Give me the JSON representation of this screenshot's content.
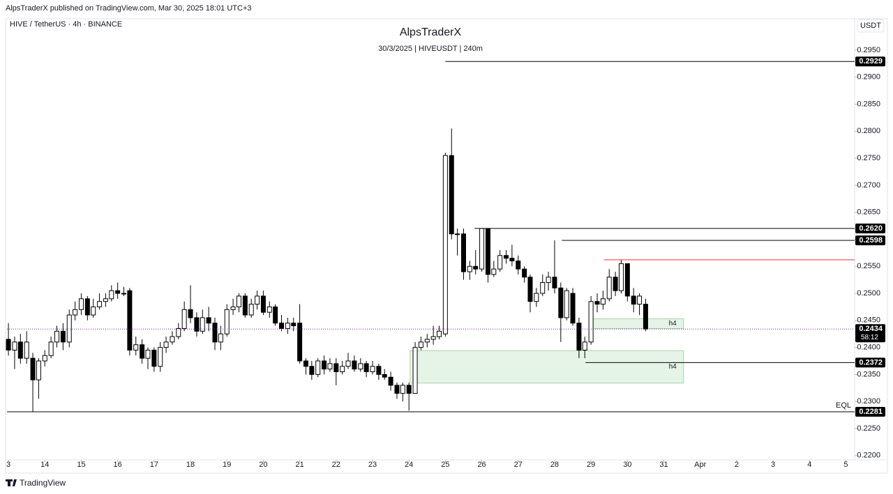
{
  "header": {
    "publisher": "AlpsTraderX published on TradingView.com, Mar 30, 2025 18:01 UTC+3",
    "footer": "TradingView"
  },
  "chart_data": {
    "type": "candlestick",
    "title": "AlpsTraderX",
    "subtitle": "30/3/2025 | HIVEUSDT | 240m",
    "symbol": "HIVE / TetherUS · 4h · BINANCE",
    "currency": "USDT",
    "up_color": "#ffffff",
    "down_color": "#000000",
    "edge_color": "#000000",
    "x": [
      13,
      13.17,
      13.33,
      13.5,
      13.67,
      13.83,
      14,
      14.17,
      14.33,
      14.5,
      14.67,
      14.83,
      15,
      15.17,
      15.33,
      15.5,
      15.67,
      15.83,
      16,
      16.17,
      16.33,
      16.5,
      16.67,
      16.83,
      17,
      17.17,
      17.33,
      17.5,
      17.67,
      17.83,
      18,
      18.17,
      18.33,
      18.5,
      18.67,
      18.83,
      19,
      19.17,
      19.33,
      19.5,
      19.67,
      19.83,
      20,
      20.17,
      20.33,
      20.5,
      20.67,
      20.83,
      21,
      21.17,
      21.33,
      21.5,
      21.67,
      21.83,
      22,
      22.17,
      22.33,
      22.5,
      22.67,
      22.83,
      23,
      23.17,
      23.33,
      23.5,
      23.67,
      23.83,
      24,
      24.17,
      24.33,
      24.5,
      24.67,
      24.83,
      25,
      25.17,
      25.33,
      25.5,
      25.67,
      25.83,
      26,
      26.17,
      26.33,
      26.5,
      26.67,
      26.83,
      27,
      27.17,
      27.33,
      27.5,
      27.67,
      27.83,
      28,
      28.17,
      28.33,
      28.5,
      28.67,
      28.83,
      29,
      29.17,
      29.33,
      29.5,
      29.67,
      29.83,
      30,
      30.17,
      30.33,
      30.5
    ],
    "open": [
      0.2415,
      0.2395,
      0.241,
      0.238,
      0.238,
      0.234,
      0.2375,
      0.2385,
      0.241,
      0.243,
      0.241,
      0.246,
      0.247,
      0.249,
      0.246,
      0.2475,
      0.2485,
      0.249,
      0.2505,
      0.25,
      0.2505,
      0.2395,
      0.2405,
      0.238,
      0.2395,
      0.2365,
      0.24,
      0.241,
      0.242,
      0.2435,
      0.247,
      0.2455,
      0.243,
      0.2455,
      0.2445,
      0.241,
      0.2425,
      0.247,
      0.2475,
      0.2495,
      0.246,
      0.248,
      0.2495,
      0.2465,
      0.2475,
      0.2445,
      0.2435,
      0.2445,
      0.2445,
      0.2375,
      0.2365,
      0.235,
      0.2375,
      0.236,
      0.237,
      0.2355,
      0.2365,
      0.2375,
      0.236,
      0.237,
      0.2355,
      0.2365,
      0.235,
      0.2345,
      0.233,
      0.2315,
      0.233,
      0.2315,
      0.24,
      0.241,
      0.2415,
      0.242,
      0.2425,
      0.2755,
      0.261,
      0.261,
      0.254,
      0.255,
      0.2545,
      0.262,
      0.2535,
      0.2545,
      0.257,
      0.2565,
      0.256,
      0.2545,
      0.253,
      0.2485,
      0.25,
      0.252,
      0.253,
      0.251,
      0.2455,
      0.25,
      0.2445,
      0.2395,
      0.241,
      0.2485,
      0.248,
      0.249,
      0.253,
      0.2505,
      0.2555,
      0.2495,
      0.248,
      0.248
    ],
    "high": [
      0.2445,
      0.242,
      0.2425,
      0.243,
      0.239,
      0.238,
      0.2395,
      0.242,
      0.244,
      0.2445,
      0.247,
      0.2485,
      0.25,
      0.2495,
      0.249,
      0.25,
      0.25,
      0.2515,
      0.252,
      0.2512,
      0.251,
      0.242,
      0.2415,
      0.24,
      0.24,
      0.241,
      0.242,
      0.243,
      0.2445,
      0.2485,
      0.2515,
      0.2465,
      0.247,
      0.2475,
      0.2455,
      0.244,
      0.248,
      0.249,
      0.25,
      0.25,
      0.249,
      0.2505,
      0.2505,
      0.2485,
      0.248,
      0.246,
      0.2455,
      0.2455,
      0.248,
      0.238,
      0.2375,
      0.238,
      0.2385,
      0.238,
      0.238,
      0.2375,
      0.239,
      0.2385,
      0.238,
      0.2375,
      0.2375,
      0.237,
      0.236,
      0.2355,
      0.2335,
      0.2335,
      0.2335,
      0.241,
      0.242,
      0.2425,
      0.244,
      0.244,
      0.276,
      0.2805,
      0.262,
      0.262,
      0.256,
      0.258,
      0.262,
      0.262,
      0.256,
      0.258,
      0.258,
      0.259,
      0.257,
      0.255,
      0.2535,
      0.251,
      0.2535,
      0.254,
      0.2598,
      0.252,
      0.251,
      0.251,
      0.2455,
      0.242,
      0.2495,
      0.25,
      0.2505,
      0.2545,
      0.254,
      0.2562,
      0.2555,
      0.251,
      0.25,
      0.249
    ],
    "low": [
      0.2385,
      0.236,
      0.237,
      0.237,
      0.2281,
      0.2305,
      0.2365,
      0.238,
      0.24,
      0.2395,
      0.24,
      0.245,
      0.246,
      0.245,
      0.2455,
      0.247,
      0.2475,
      0.2485,
      0.249,
      0.2495,
      0.2385,
      0.2385,
      0.237,
      0.236,
      0.2355,
      0.2355,
      0.239,
      0.2405,
      0.2415,
      0.243,
      0.2445,
      0.242,
      0.2425,
      0.243,
      0.2395,
      0.2395,
      0.242,
      0.246,
      0.2465,
      0.2455,
      0.2455,
      0.247,
      0.246,
      0.2455,
      0.244,
      0.243,
      0.2425,
      0.243,
      0.237,
      0.235,
      0.234,
      0.2345,
      0.235,
      0.2355,
      0.233,
      0.235,
      0.236,
      0.2355,
      0.2355,
      0.2345,
      0.235,
      0.234,
      0.234,
      0.232,
      0.2305,
      0.23,
      0.2283,
      0.2315,
      0.2395,
      0.24,
      0.2405,
      0.2415,
      0.242,
      0.26,
      0.257,
      0.2525,
      0.2525,
      0.2535,
      0.254,
      0.252,
      0.253,
      0.254,
      0.2555,
      0.255,
      0.2535,
      0.252,
      0.2465,
      0.2475,
      0.2495,
      0.2505,
      0.25,
      0.241,
      0.245,
      0.244,
      0.238,
      0.238,
      0.2405,
      0.2465,
      0.247,
      0.2485,
      0.2495,
      0.25,
      0.2485,
      0.2465,
      0.246,
      0.243
    ],
    "close": [
      0.2395,
      0.241,
      0.238,
      0.241,
      0.234,
      0.2375,
      0.2385,
      0.241,
      0.243,
      0.241,
      0.246,
      0.247,
      0.249,
      0.246,
      0.2475,
      0.2485,
      0.249,
      0.2505,
      0.25,
      0.25,
      0.2395,
      0.2405,
      0.238,
      0.2395,
      0.2365,
      0.24,
      0.241,
      0.242,
      0.2435,
      0.247,
      0.2455,
      0.243,
      0.2455,
      0.2445,
      0.241,
      0.2425,
      0.247,
      0.2475,
      0.2495,
      0.246,
      0.248,
      0.2495,
      0.2465,
      0.2475,
      0.2445,
      0.2435,
      0.2445,
      0.244,
      0.2375,
      0.2365,
      0.235,
      0.2375,
      0.236,
      0.237,
      0.2355,
      0.2365,
      0.2375,
      0.236,
      0.237,
      0.2355,
      0.2365,
      0.235,
      0.2345,
      0.233,
      0.2315,
      0.233,
      0.2315,
      0.24,
      0.241,
      0.2415,
      0.242,
      0.243,
      0.2755,
      0.261,
      0.261,
      0.254,
      0.255,
      0.2545,
      0.262,
      0.2535,
      0.2545,
      0.257,
      0.2565,
      0.256,
      0.2545,
      0.253,
      0.2485,
      0.25,
      0.252,
      0.253,
      0.251,
      0.2455,
      0.2505,
      0.2445,
      0.2395,
      0.241,
      0.2485,
      0.248,
      0.249,
      0.253,
      0.2505,
      0.2555,
      0.2495,
      0.248,
      0.2495,
      0.2434
    ],
    "levels": [
      {
        "value": 0.2929,
        "x_start": 25,
        "color": "#000000"
      },
      {
        "value": 0.262,
        "label": "0.2620",
        "x_start": 25.8,
        "color": "#000000"
      },
      {
        "value": 0.2598,
        "x_start": 28.2,
        "color": "#000000"
      },
      {
        "value": 0.2562,
        "x_start": 29.35,
        "color": "#e53935"
      },
      {
        "value": 0.2372,
        "x_start": 28.85,
        "color": "#000000"
      },
      {
        "value": 0.2281,
        "x_start": 12.96,
        "color": "#000000",
        "note": "EQL"
      }
    ],
    "current": {
      "value": 0.2434,
      "countdown": "58:12",
      "color": "#7b1fa2"
    },
    "zones": [
      {
        "top": 0.2453,
        "bottom": 0.2435,
        "x": [
          29.05,
          31.54
        ],
        "label": "h4",
        "color": "#c8e6c9"
      },
      {
        "top": 0.2394,
        "bottom": 0.2334,
        "x": [
          24.03,
          31.54
        ],
        "label": "h4",
        "color": "#c8e6c9"
      }
    ],
    "xlim": [
      12.96,
      36.24
    ],
    "ylim": [
      0.2192,
      0.3004
    ],
    "xticks": [
      {
        "value": 13,
        "label": "3"
      },
      14,
      15,
      16,
      17,
      18,
      19,
      20,
      21,
      22,
      23,
      24,
      25,
      26,
      27,
      28,
      29,
      30,
      31,
      {
        "value": 32,
        "label": "Apr"
      },
      {
        "value": 33,
        "label": "2"
      },
      {
        "value": 34,
        "label": "3"
      },
      {
        "value": 35,
        "label": "4"
      },
      {
        "value": 36,
        "label": "5"
      }
    ],
    "yticks": [
      {
        "value": 0.295,
        "label": "0.2950"
      },
      {
        "value": 0.29,
        "label": "0.2900"
      },
      {
        "value": 0.285,
        "label": "0.2850"
      },
      {
        "value": 0.28,
        "label": "0.2800"
      },
      {
        "value": 0.275,
        "label": "0.2750"
      },
      {
        "value": 0.27,
        "label": "0.2700"
      },
      {
        "value": 0.265,
        "label": "0.2650"
      },
      {
        "value": 0.26,
        "label": "0.2600"
      },
      {
        "value": 0.255,
        "label": "0.2550"
      },
      {
        "value": 0.25,
        "label": "0.2500"
      },
      {
        "value": 0.245,
        "label": "0.2450"
      },
      {
        "value": 0.24,
        "label": "0.2400"
      },
      {
        "value": 0.235,
        "label": "0.2350"
      },
      {
        "value": 0.23,
        "label": "0.2300"
      },
      {
        "value": 0.225,
        "label": "0.2250"
      },
      {
        "value": 0.22,
        "label": "0.2200"
      }
    ],
    "grid": false
  }
}
